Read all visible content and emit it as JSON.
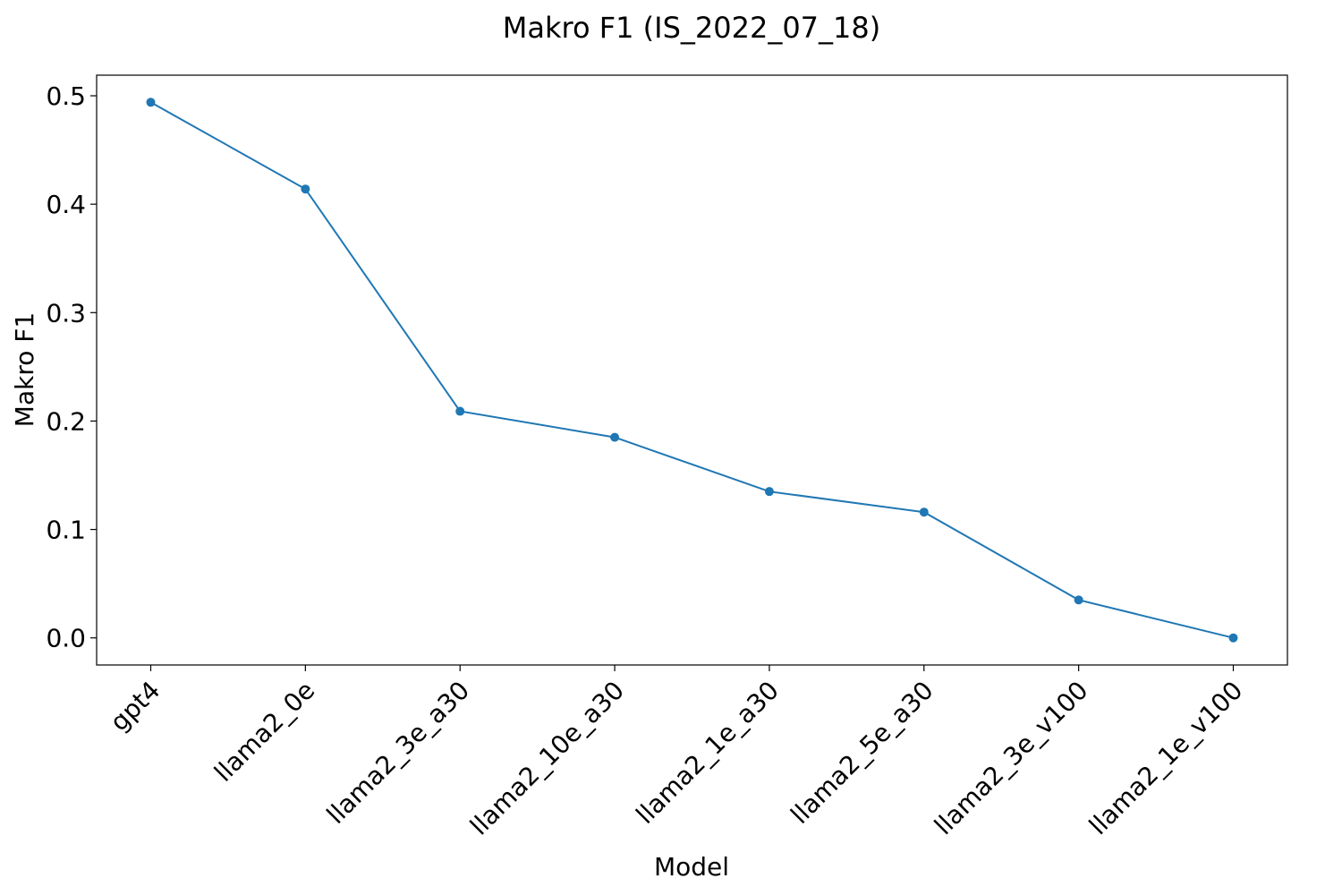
{
  "chart_data": {
    "type": "line",
    "title": "Makro F1 (IS_2022_07_18)",
    "xlabel": "Model",
    "ylabel": "Makro F1",
    "categories": [
      "gpt4",
      "llama2_0e",
      "llama2_3e_a30",
      "llama2_10e_a30",
      "llama2_1e_a30",
      "llama2_5e_a30",
      "llama2_3e_v100",
      "llama2_1e_v100"
    ],
    "series": [
      {
        "values": [
          0.494,
          0.414,
          0.209,
          0.185,
          0.135,
          0.116,
          0.035,
          0.0
        ],
        "color": "#1f77b4"
      }
    ],
    "ylim": [
      -0.025,
      0.519
    ],
    "yticks": [
      0.0,
      0.1,
      0.2,
      0.3,
      0.4,
      0.5
    ],
    "ytick_labels": [
      "0.0",
      "0.1",
      "0.2",
      "0.3",
      "0.4",
      "0.5"
    ],
    "grid": false,
    "legend": "none",
    "xtick_rotation": "45"
  }
}
